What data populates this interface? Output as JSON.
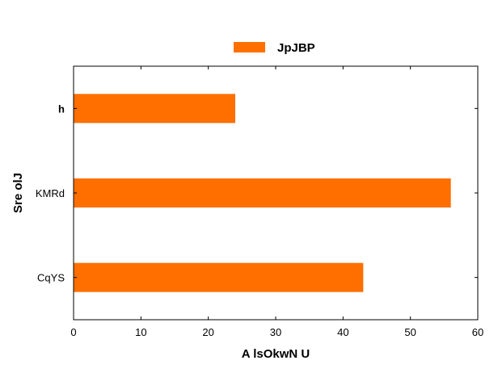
{
  "chart_data": {
    "type": "bar",
    "orientation": "horizontal",
    "categories": [
      "h",
      "KMRd",
      "CqYS"
    ],
    "series": [
      {
        "name": "JpJBP",
        "values": [
          24,
          56,
          43
        ],
        "color": "#ff6f00"
      }
    ],
    "xlabel": "A lsOkwN U",
    "ylabel": "Sre  olJ",
    "xlim": [
      0,
      60
    ],
    "xticks": [
      0,
      10,
      20,
      30,
      40,
      50,
      60
    ],
    "grid": false,
    "legend": "top-center"
  }
}
